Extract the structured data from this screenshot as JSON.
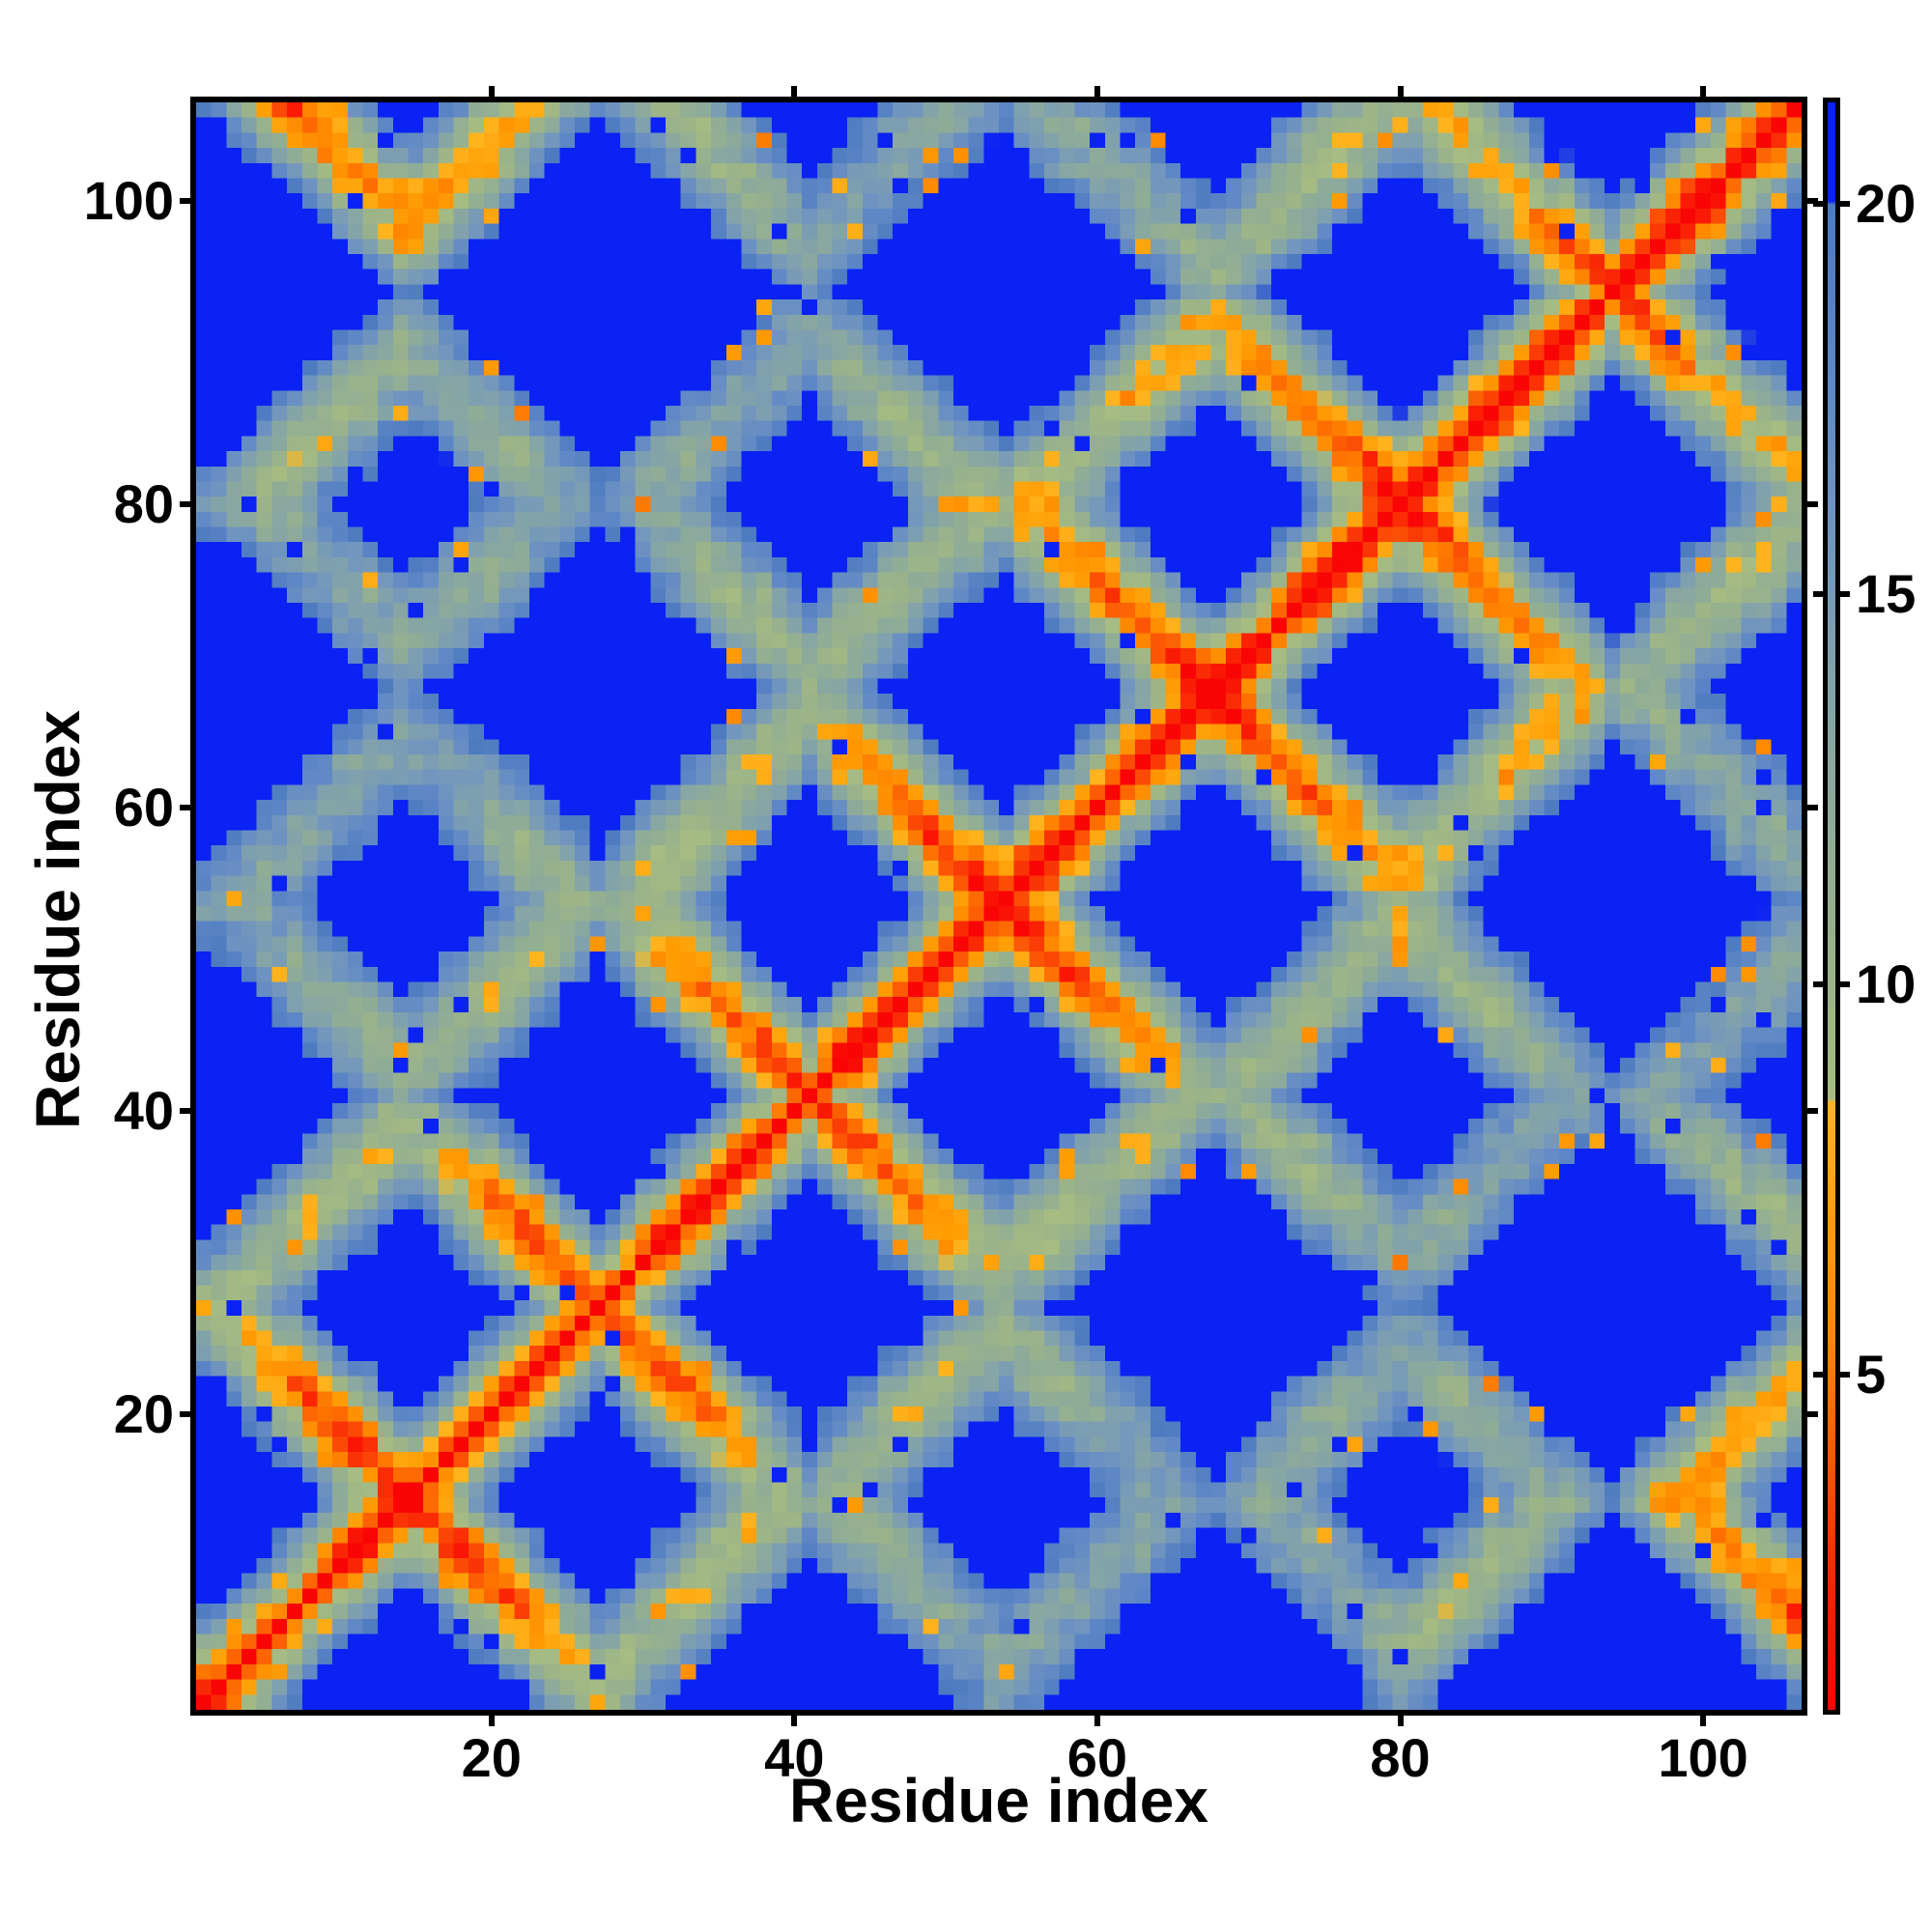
{
  "chart_data": {
    "type": "heatmap",
    "title": "",
    "xlabel": "Residue index",
    "ylabel": "Residue index",
    "x_ticks": [
      20,
      40,
      60,
      80,
      100
    ],
    "y_ticks": [
      20,
      40,
      60,
      80,
      100
    ],
    "axis_range": [
      1,
      106
    ],
    "n_residues": 106,
    "grid": false,
    "legend": "colorbar-right",
    "colorbar_ticks": [
      5,
      10,
      15,
      20
    ],
    "value_range": [
      0.7,
      21.3
    ],
    "diagonal_value": 0,
    "colormap": [
      [
        0.7,
        "#f90505"
      ],
      [
        2.2,
        "#fa2105"
      ],
      [
        3.5,
        "#fb4a06"
      ],
      [
        4.5,
        "#fd6903"
      ],
      [
        5.5,
        "#ff8800"
      ],
      [
        7.0,
        "#ff9d05"
      ],
      [
        8.49,
        "#ffb41e"
      ],
      [
        8.5,
        "#a6bc82"
      ],
      [
        10.0,
        "#9cb488"
      ],
      [
        12.0,
        "#8fac97"
      ],
      [
        14.0,
        "#82a2ab"
      ],
      [
        16.0,
        "#7094c0"
      ],
      [
        18.0,
        "#5d86c6"
      ],
      [
        20.0,
        "#4d7ac0"
      ],
      [
        20.02,
        "#0a22f4"
      ],
      [
        21.3,
        "#0a22f4"
      ]
    ],
    "model": {
      "n_residues": 106,
      "residues_per_strand": 13.25,
      "n_strands": 8,
      "strand_height": 44.0,
      "radius": 6.45,
      "stagger": 2.3,
      "jitter": 1.0,
      "pair_noise": 2.6,
      "wave_amp": 1.5,
      "spike_blue": 0.015,
      "spike_orange": 0.02,
      "spike_blue_value": 23.0,
      "spike_orange_base": 5.0
    }
  },
  "colors": {
    "background": "#ffffff",
    "axis": "#000000",
    "far_blue": "#0a22f4",
    "contact_red": "#f90505"
  }
}
